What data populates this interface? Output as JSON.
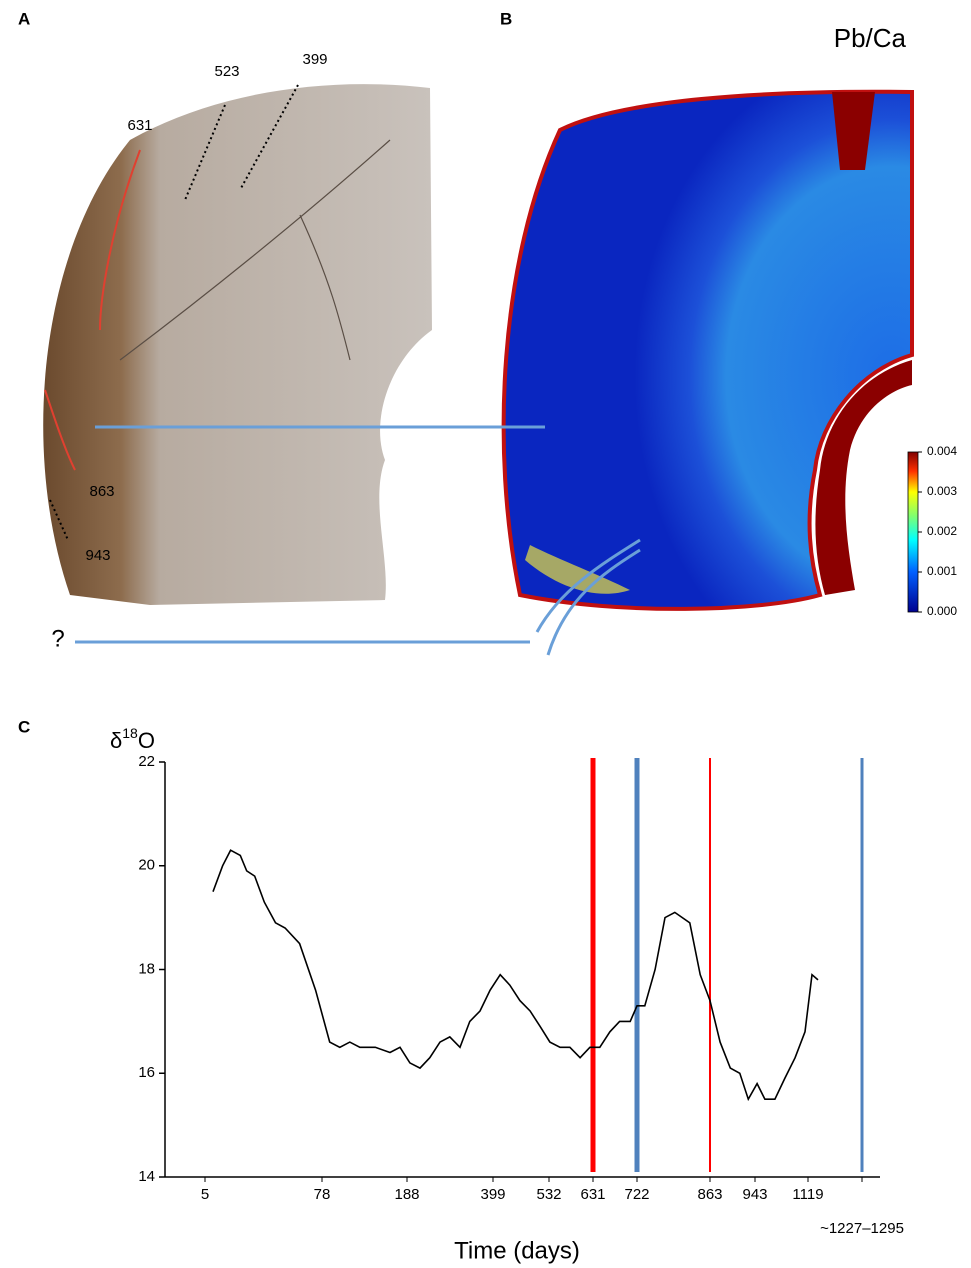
{
  "figure": {
    "panel_labels": [
      "A",
      "B",
      "C"
    ],
    "panel_a": {
      "annotations": [
        "523",
        "399",
        "631",
        "863",
        "943"
      ]
    },
    "panel_b": {
      "title": "Pb/Ca",
      "colorbar": {
        "lim": [
          0,
          0.004
        ],
        "ticks": [
          {
            "value": 0.004,
            "label": "0.004"
          },
          {
            "value": 0.003,
            "label": "0.003"
          },
          {
            "value": 0.002,
            "label": "0.002"
          },
          {
            "value": 0.001,
            "label": "0.001"
          },
          {
            "value": 0,
            "label": "0.000"
          }
        ]
      }
    },
    "question": "?"
  },
  "chart_data": {
    "type": "line",
    "ylabel": {
      "base": "δ",
      "sup": "18",
      "tail": "O"
    },
    "xlabel": "Time (days)",
    "ylim": [
      14,
      22
    ],
    "yticks": [
      14,
      16,
      18,
      20,
      22
    ],
    "xticks": [
      5,
      78,
      188,
      399,
      532,
      631,
      722,
      863,
      943,
      1119,
      {
        "value": 1227,
        "label": "~1227–1295"
      }
    ],
    "color": "#000000",
    "x": [
      10,
      16,
      21,
      27,
      31,
      36,
      42,
      49,
      55,
      64,
      74,
      88,
      101,
      114,
      127,
      147,
      166,
      179,
      195,
      220,
      244,
      269,
      293,
      318,
      342,
      367,
      392,
      416,
      439,
      463,
      487,
      511,
      534,
      557,
      579,
      602,
      624,
      645,
      666,
      686,
      708,
      722,
      737,
      757,
      776,
      795,
      824,
      844,
      863,
      881,
      899,
      916,
      931,
      950,
      976,
      1009,
      1042,
      1076,
      1109,
      1127,
      1139
    ],
    "values": [
      19.5,
      20.0,
      20.3,
      20.2,
      19.9,
      19.8,
      19.3,
      18.9,
      18.8,
      18.5,
      17.6,
      16.6,
      16.5,
      16.6,
      16.5,
      16.5,
      16.4,
      16.5,
      16.2,
      16.1,
      16.3,
      16.6,
      16.7,
      16.5,
      17.0,
      17.2,
      17.6,
      17.9,
      17.7,
      17.4,
      17.2,
      16.9,
      16.6,
      16.5,
      16.5,
      16.3,
      16.5,
      16.5,
      16.8,
      17.0,
      17.0,
      17.3,
      17.3,
      18.0,
      19.0,
      19.1,
      18.9,
      17.9,
      17.4,
      16.6,
      16.1,
      16.0,
      15.5,
      15.8,
      15.5,
      15.5,
      15.9,
      16.3,
      16.8,
      17.9,
      17.8
    ],
    "vlines": [
      {
        "x": 631,
        "color": "#ff0000",
        "width": 5
      },
      {
        "x": 722,
        "color": "#4f81bd",
        "width": 5
      },
      {
        "x": 863,
        "color": "#ff0000",
        "width": 2
      },
      {
        "x": 1227,
        "color": "#4f81bd",
        "width": 3
      }
    ]
  }
}
